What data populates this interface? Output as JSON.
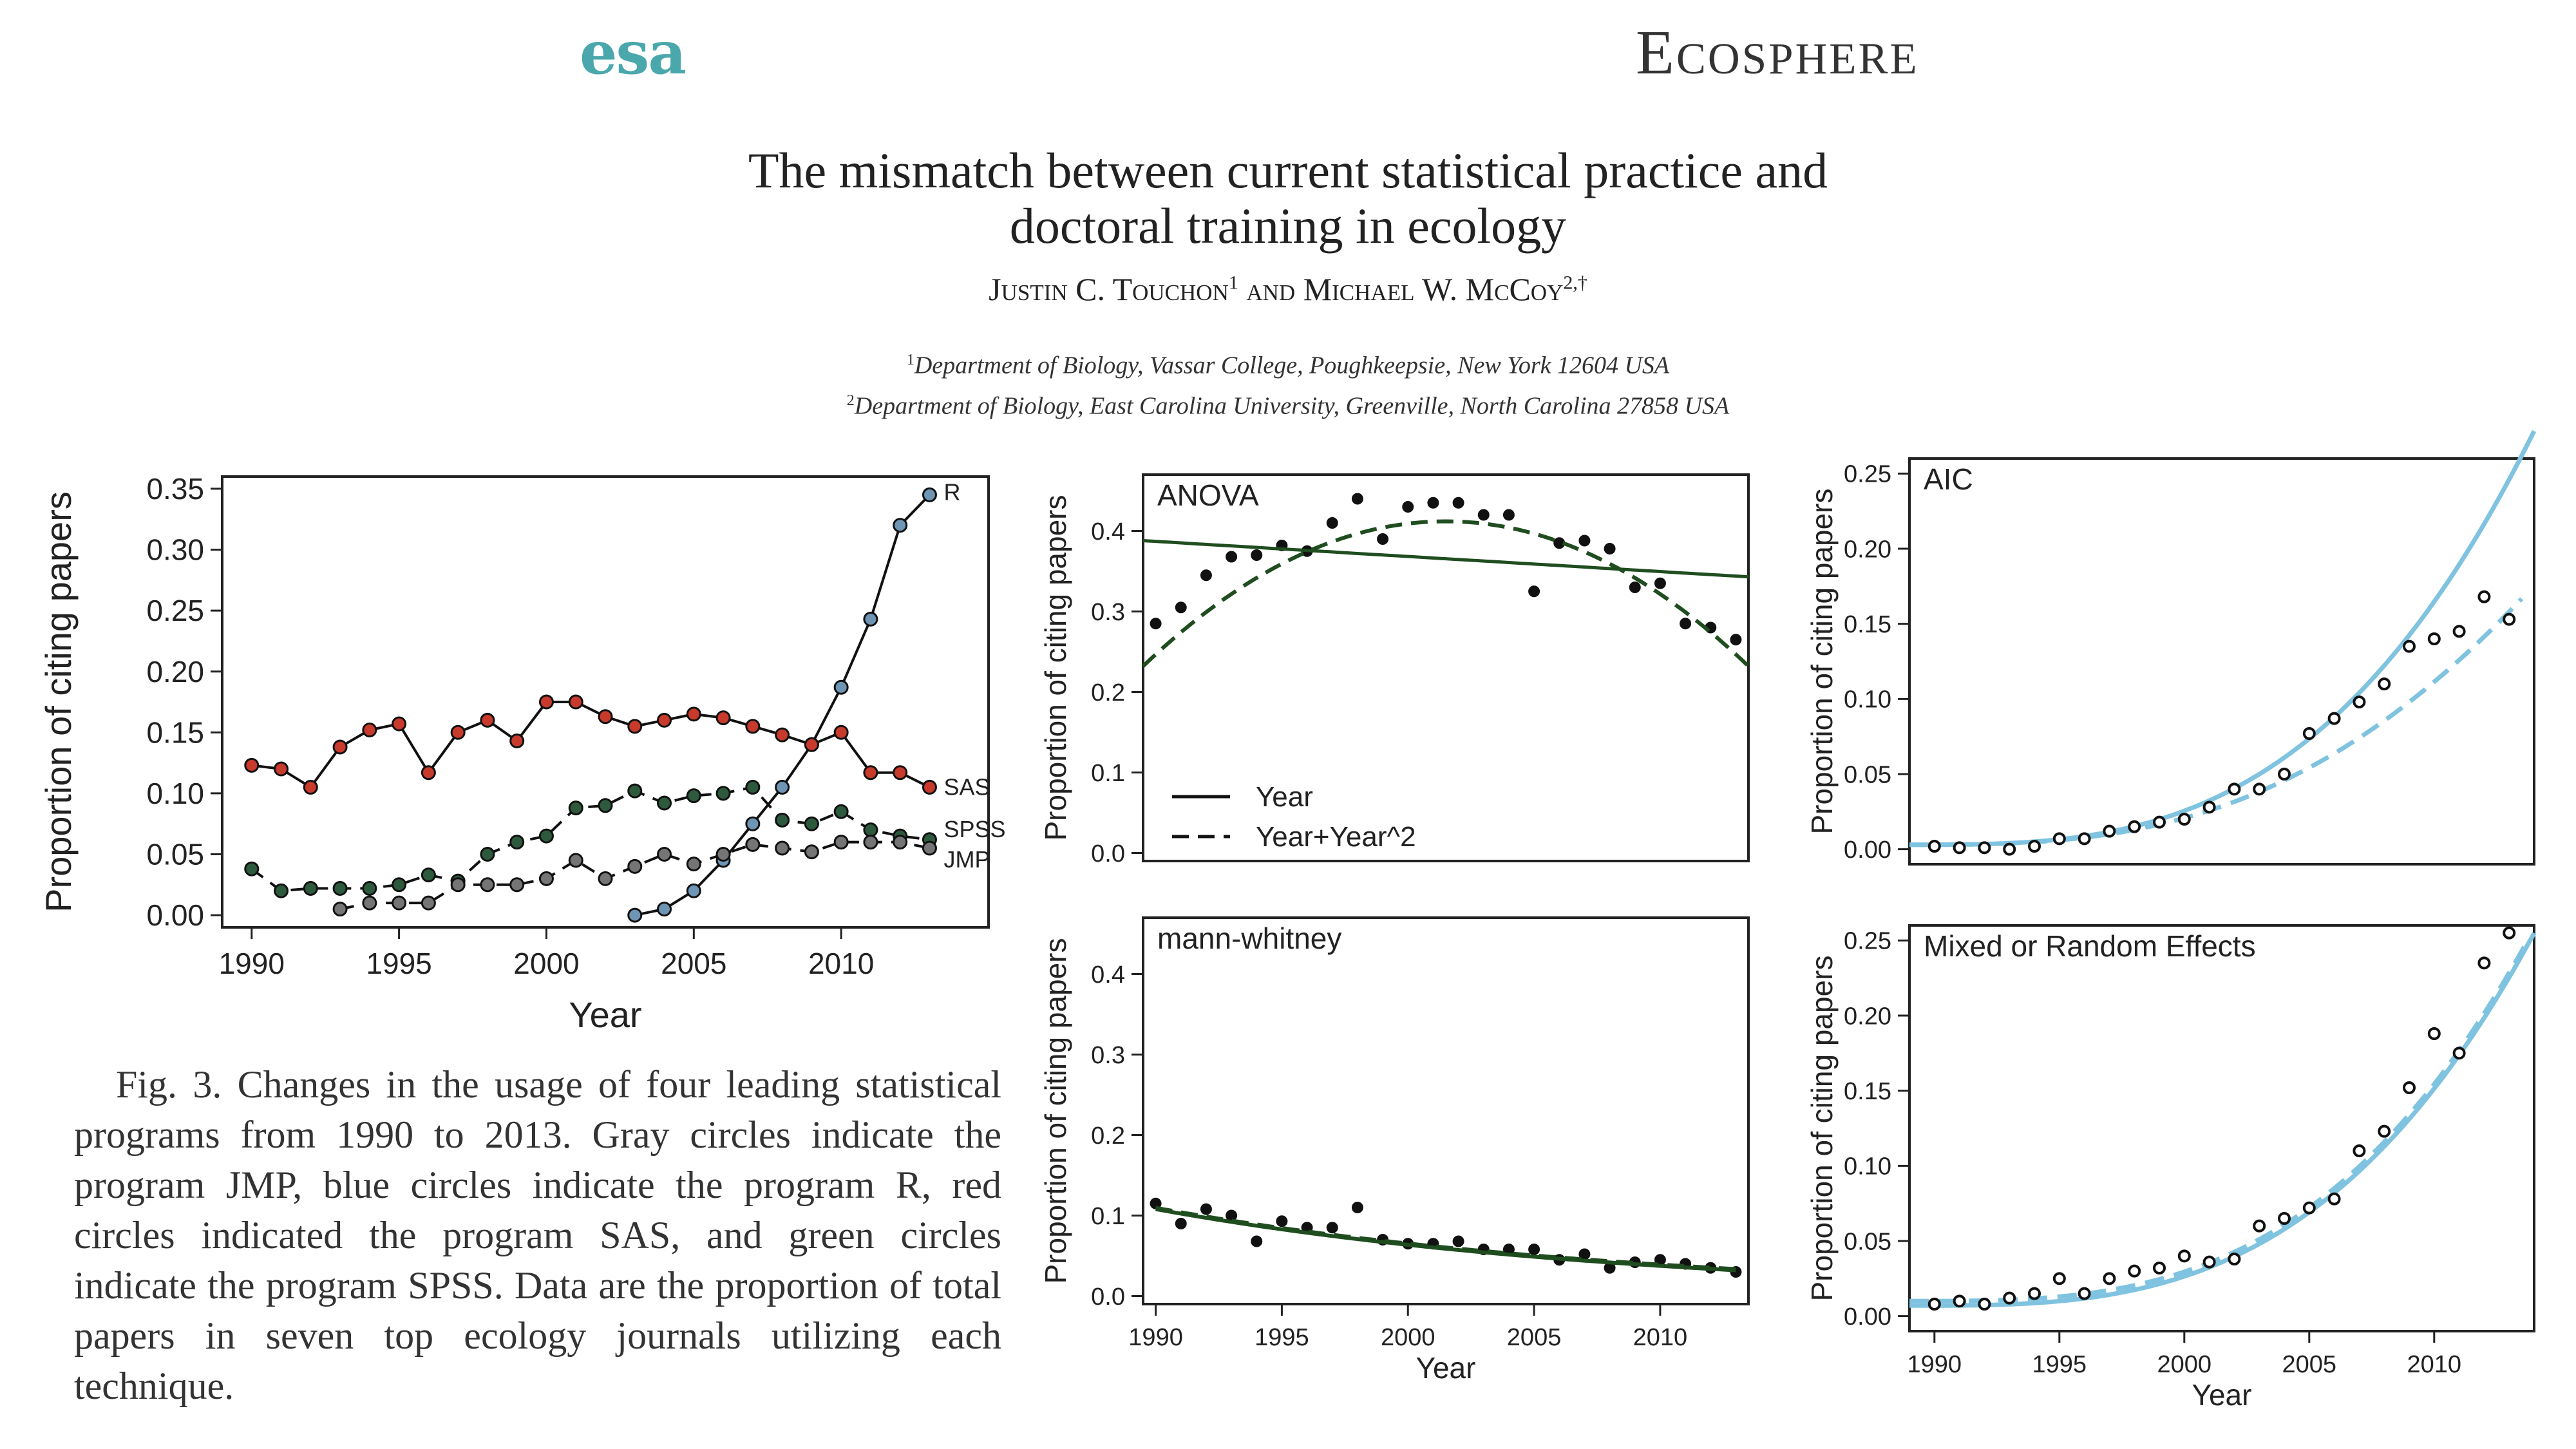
{
  "header": {
    "logo_text": "esa",
    "journal": "Ecosphere"
  },
  "paper": {
    "title_line1": "The mismatch between current statistical practice and",
    "title_line2": "doctoral training in ecology",
    "author1": "Justin C. Touchon",
    "author1_sup": "1",
    "and": " and ",
    "author2": "Michael W. McCoy",
    "author2_sup": "2,†",
    "affil1_sup": "1",
    "affil1": "Department of Biology, Vassar College, Poughkeepsie, New York 12604 USA",
    "affil2_sup": "2",
    "affil2": "Department of Biology, East Carolina University, Greenville, North Carolina 27858 USA"
  },
  "caption": {
    "label": "Fig. 3.",
    "text": "Changes in the usage of four leading statistical programs from 1990 to 2013. Gray circles indicate the program JMP, blue circles indicate the program R, red circles indicated the program SAS, and green circles indicate the program SPSS. Data are the proportion of total papers in seven top ecology journals utilizing each technique."
  },
  "chart_data": [
    {
      "id": "software",
      "type": "line",
      "xlabel": "Year",
      "ylabel": "Proportion of citing papers",
      "xlim": [
        1989,
        2015
      ],
      "ylim": [
        -0.01,
        0.36
      ],
      "xticks": [
        1990,
        1995,
        2000,
        2005,
        2010
      ],
      "yticks": [
        "0.00",
        "0.05",
        "0.10",
        "0.15",
        "0.20",
        "0.25",
        "0.30",
        "0.35"
      ],
      "series": [
        {
          "name": "R",
          "color": "#6f95b5",
          "x": [
            2003,
            2004,
            2005,
            2006,
            2007,
            2008,
            2009,
            2010,
            2011,
            2012,
            2013
          ],
          "values": [
            0.0,
            0.005,
            0.02,
            0.045,
            0.075,
            0.105,
            0.14,
            0.187,
            0.243,
            0.32,
            0.345
          ]
        },
        {
          "name": "SAS",
          "color": "#c83a2c",
          "x": [
            1990,
            1991,
            1992,
            1993,
            1994,
            1995,
            1996,
            1997,
            1998,
            1999,
            2000,
            2001,
            2002,
            2003,
            2004,
            2005,
            2006,
            2007,
            2008,
            2009,
            2010,
            2011,
            2012,
            2013
          ],
          "values": [
            0.123,
            0.12,
            0.105,
            0.138,
            0.152,
            0.157,
            0.117,
            0.15,
            0.16,
            0.143,
            0.175,
            0.175,
            0.163,
            0.155,
            0.16,
            0.165,
            0.162,
            0.155,
            0.148,
            0.14,
            0.15,
            0.117,
            0.117,
            0.105
          ]
        },
        {
          "name": "SPSS",
          "color": "#2d5a3c",
          "x": [
            1990,
            1991,
            1992,
            1993,
            1994,
            1995,
            1996,
            1997,
            1998,
            1999,
            2000,
            2001,
            2002,
            2003,
            2004,
            2005,
            2006,
            2007,
            2008,
            2009,
            2010,
            2011,
            2012,
            2013
          ],
          "values": [
            0.038,
            0.02,
            0.022,
            0.022,
            0.022,
            0.025,
            0.033,
            0.028,
            0.05,
            0.06,
            0.065,
            0.088,
            0.09,
            0.102,
            0.092,
            0.098,
            0.1,
            0.105,
            0.078,
            0.075,
            0.085,
            0.07,
            0.065,
            0.062
          ]
        },
        {
          "name": "JMP",
          "color": "#757575",
          "x": [
            1993,
            1994,
            1995,
            1996,
            1997,
            1998,
            1999,
            2000,
            2001,
            2002,
            2003,
            2004,
            2005,
            2006,
            2007,
            2008,
            2009,
            2010,
            2011,
            2012,
            2013
          ],
          "values": [
            0.005,
            0.01,
            0.01,
            0.01,
            0.025,
            0.025,
            0.025,
            0.03,
            0.045,
            0.03,
            0.04,
            0.05,
            0.042,
            0.05,
            0.058,
            0.055,
            0.052,
            0.06,
            0.06,
            0.06,
            0.055
          ]
        }
      ]
    },
    {
      "id": "anova",
      "type": "scatter",
      "title": "ANOVA",
      "ylabel": "Proportion of citing papers",
      "xlim": [
        1989.5,
        2013.5
      ],
      "ylim": [
        -0.01,
        0.47
      ],
      "yticks": [
        "0.0",
        "0.1",
        "0.2",
        "0.3",
        "0.4"
      ],
      "legend": [
        "Year",
        "Year+Year^2"
      ],
      "color": "#1f4d1f",
      "x": [
        1990,
        1991,
        1992,
        1993,
        1994,
        1995,
        1996,
        1997,
        1998,
        1999,
        2000,
        2001,
        2002,
        2003,
        2004,
        2005,
        2006,
        2007,
        2008,
        2009,
        2010,
        2011,
        2012,
        2013
      ],
      "values": [
        0.285,
        0.305,
        0.345,
        0.368,
        0.37,
        0.382,
        0.375,
        0.41,
        0.44,
        0.39,
        0.43,
        0.435,
        0.435,
        0.42,
        0.42,
        0.325,
        0.385,
        0.388,
        0.378,
        0.33,
        0.335,
        0.285,
        0.28,
        0.265
      ],
      "fit_linear": [
        0.388,
        0.343
      ],
      "fit_quadratic": {
        "peak_x": 2001.5,
        "peak_y": 0.412,
        "k": 0.00125
      }
    },
    {
      "id": "mann-whitney",
      "type": "scatter",
      "title": "mann-whitney",
      "xlabel": "Year",
      "ylabel": "Proportion of citing papers",
      "xlim": [
        1989.5,
        2013.5
      ],
      "ylim": [
        -0.01,
        0.47
      ],
      "xticks": [
        1990,
        1995,
        2000,
        2005,
        2010
      ],
      "yticks": [
        "0.0",
        "0.1",
        "0.2",
        "0.3",
        "0.4"
      ],
      "color": "#1f4d1f",
      "x": [
        1990,
        1991,
        1992,
        1993,
        1994,
        1995,
        1996,
        1997,
        1998,
        1999,
        2000,
        2001,
        2002,
        2003,
        2004,
        2005,
        2006,
        2007,
        2008,
        2009,
        2010,
        2011,
        2012,
        2013
      ],
      "values": [
        0.115,
        0.09,
        0.108,
        0.1,
        0.068,
        0.093,
        0.085,
        0.085,
        0.11,
        0.07,
        0.065,
        0.065,
        0.068,
        0.058,
        0.058,
        0.058,
        0.045,
        0.052,
        0.035,
        0.042,
        0.045,
        0.04,
        0.035,
        0.03
      ],
      "fit_start": 0.108,
      "fit_end": 0.032
    },
    {
      "id": "aic",
      "type": "scatter",
      "title": "AIC",
      "ylabel": "Proportion of citing papers",
      "xlim": [
        1989,
        2014
      ],
      "ylim": [
        -0.01,
        0.26
      ],
      "yticks": [
        "0.00",
        "0.05",
        "0.10",
        "0.15",
        "0.20",
        "0.25"
      ],
      "color": "#7fc3e0",
      "x": [
        1990,
        1991,
        1992,
        1993,
        1994,
        1995,
        1996,
        1997,
        1998,
        1999,
        2000,
        2001,
        2002,
        2003,
        2004,
        2005,
        2006,
        2007,
        2008,
        2009,
        2010,
        2011,
        2012,
        2013
      ],
      "values": [
        0.002,
        0.001,
        0.001,
        0.0,
        0.002,
        0.007,
        0.007,
        0.012,
        0.015,
        0.018,
        0.02,
        0.028,
        0.04,
        0.04,
        0.05,
        0.077,
        0.087,
        0.098,
        0.11,
        0.135,
        0.14,
        0.145,
        0.168,
        0.153
      ]
    },
    {
      "id": "mixed",
      "type": "scatter",
      "title": "Mixed or Random Effects",
      "xlabel": "Year",
      "ylabel": "Proportion of citing papers",
      "xlim": [
        1989,
        2014
      ],
      "ylim": [
        -0.01,
        0.26
      ],
      "xticks": [
        1990,
        1995,
        2000,
        2005,
        2010
      ],
      "yticks": [
        "0.00",
        "0.05",
        "0.10",
        "0.15",
        "0.20",
        "0.25"
      ],
      "color": "#7fc3e0",
      "x": [
        1990,
        1991,
        1992,
        1993,
        1994,
        1995,
        1996,
        1997,
        1998,
        1999,
        2000,
        2001,
        2002,
        2003,
        2004,
        2005,
        2006,
        2007,
        2008,
        2009,
        2010,
        2011,
        2012,
        2013
      ],
      "values": [
        0.008,
        0.01,
        0.008,
        0.012,
        0.015,
        0.025,
        0.015,
        0.025,
        0.03,
        0.032,
        0.04,
        0.036,
        0.038,
        0.06,
        0.065,
        0.072,
        0.078,
        0.11,
        0.123,
        0.152,
        0.188,
        0.175,
        0.235,
        0.255
      ]
    }
  ]
}
